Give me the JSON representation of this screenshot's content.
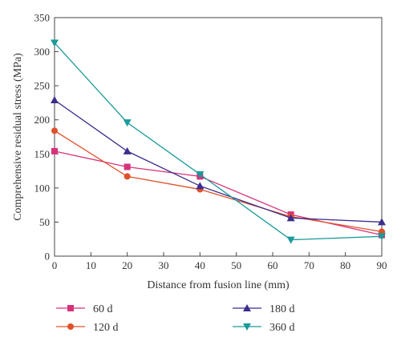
{
  "chart_data": {
    "type": "line",
    "xlabel": "Distance from fusion line (mm)",
    "ylabel": "Comprehensive residual stress (MPa)",
    "xlim": [
      0,
      90
    ],
    "ylim": [
      0,
      350
    ],
    "x_ticks": [
      0,
      10,
      20,
      30,
      40,
      50,
      60,
      70,
      80,
      90
    ],
    "y_ticks": [
      0,
      50,
      100,
      150,
      200,
      250,
      300,
      350
    ],
    "grid": false,
    "legend_position": "bottom",
    "x": [
      0,
      20,
      40,
      65,
      90
    ],
    "series": [
      {
        "name": "60 d",
        "color": "#d6327a",
        "marker": "square",
        "values": [
          154,
          131,
          117,
          61,
          31
        ]
      },
      {
        "name": "120 d",
        "color": "#e0502a",
        "marker": "circle",
        "values": [
          184,
          117,
          98,
          58,
          36
        ]
      },
      {
        "name": "180 d",
        "color": "#3b2e8c",
        "marker": "triangle-up",
        "values": [
          229,
          154,
          103,
          56,
          50
        ]
      },
      {
        "name": "360 d",
        "color": "#1a9a9a",
        "marker": "triangle-down",
        "values": [
          313,
          196,
          120,
          24,
          29
        ]
      }
    ]
  }
}
